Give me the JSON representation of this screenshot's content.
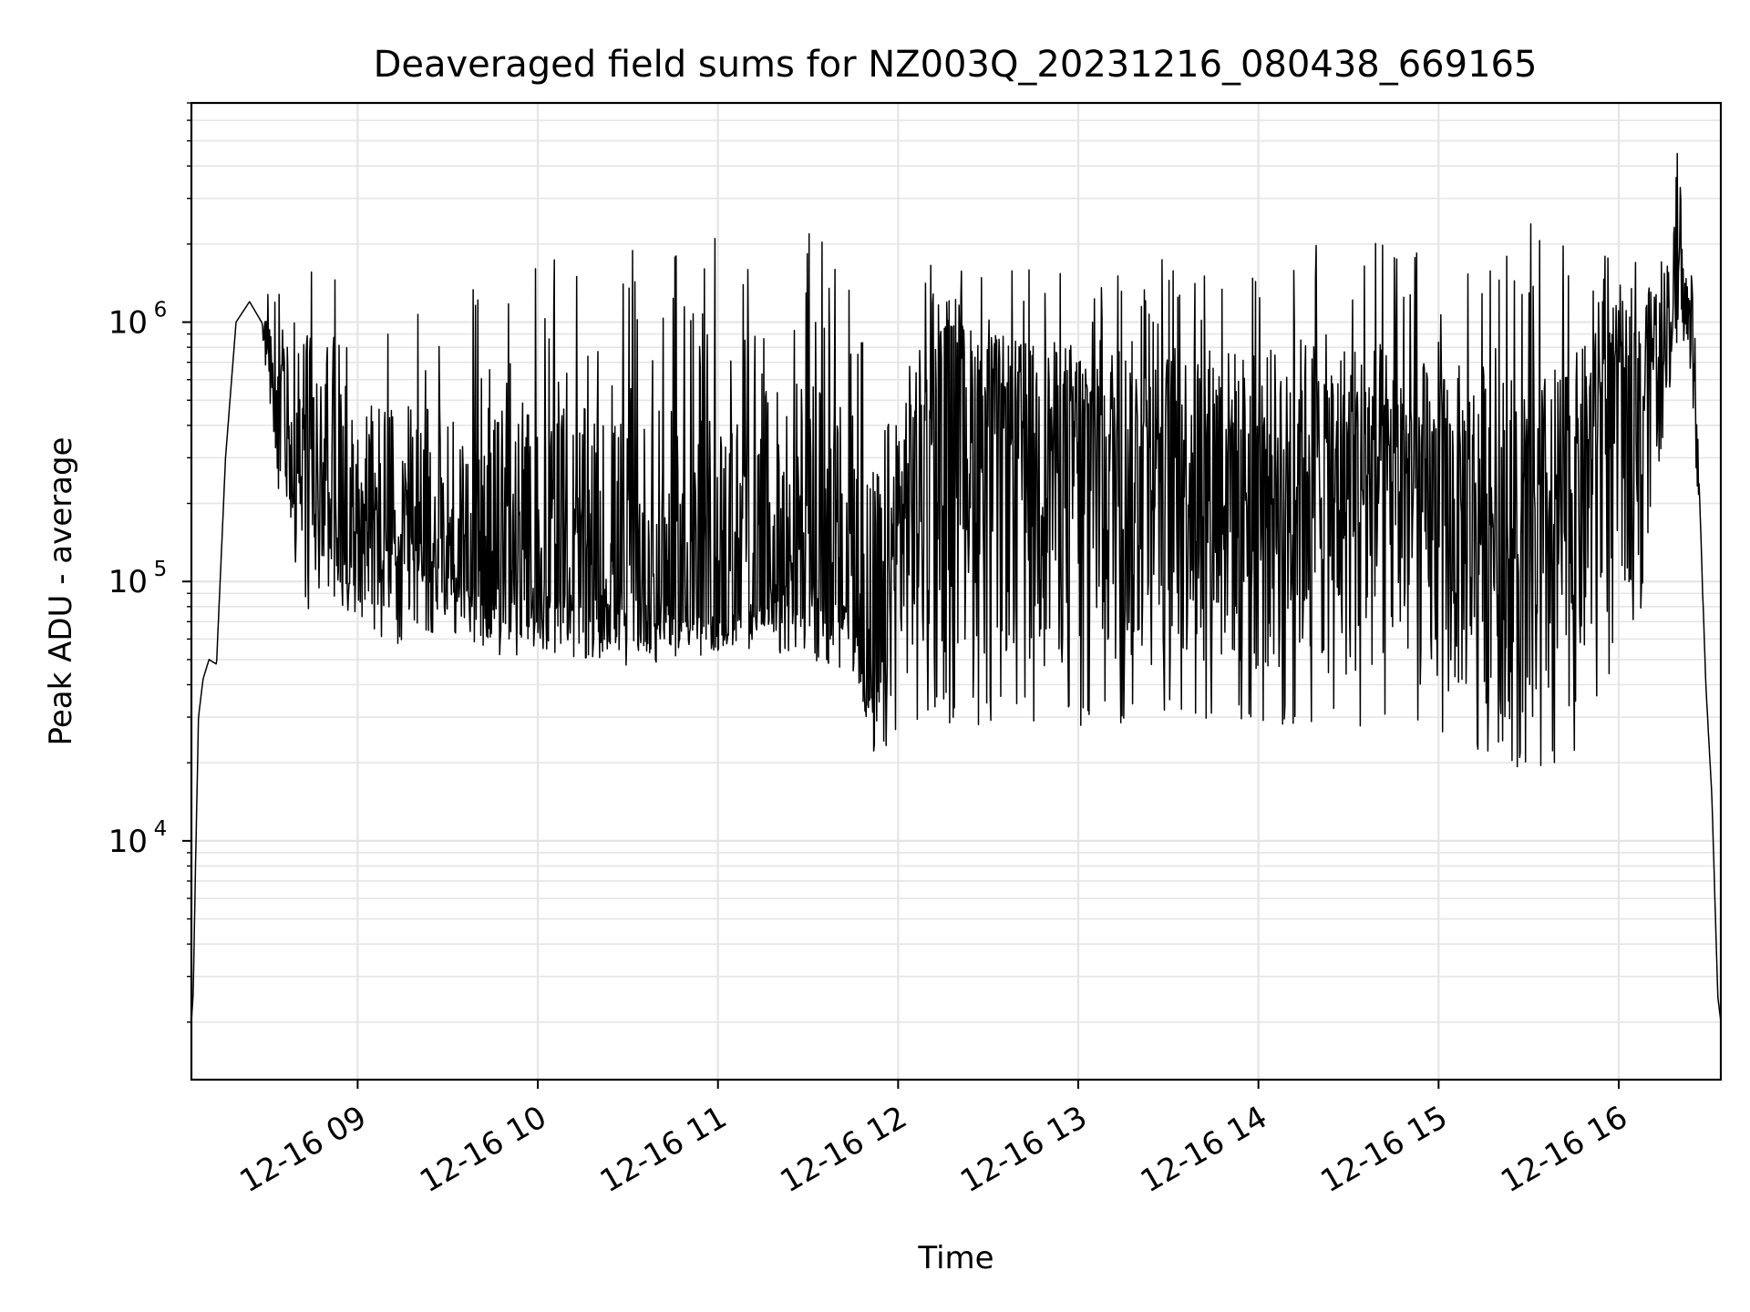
{
  "chart_data": {
    "type": "line",
    "title": "Deaveraged field sums for NZ003Q_20231216_080438_669165",
    "xlabel": "Time",
    "ylabel": "Peak ADU - average",
    "yscale": "log",
    "xlim": [
      "2023-12-16 08:04:38",
      "2023-12-16 16:34:00"
    ],
    "ylim": [
      1200,
      7000000
    ],
    "grid": true,
    "grid_minor": true,
    "line_color": "#000000",
    "grid_color": "#e5e5e5",
    "x_ticks": [
      {
        "value": "2023-12-16 09:00",
        "label": "12-16 09"
      },
      {
        "value": "2023-12-16 10:00",
        "label": "12-16 10"
      },
      {
        "value": "2023-12-16 11:00",
        "label": "12-16 11"
      },
      {
        "value": "2023-12-16 12:00",
        "label": "12-16 12"
      },
      {
        "value": "2023-12-16 13:00",
        "label": "12-16 13"
      },
      {
        "value": "2023-12-16 14:00",
        "label": "12-16 14"
      },
      {
        "value": "2023-12-16 15:00",
        "label": "12-16 15"
      },
      {
        "value": "2023-12-16 16:00",
        "label": "12-16 16"
      }
    ],
    "y_ticks": [
      {
        "value": 10000,
        "base": "10",
        "exp": "4"
      },
      {
        "value": 100000,
        "base": "10",
        "exp": "5"
      },
      {
        "value": 1000000,
        "base": "10",
        "exp": "6"
      }
    ],
    "series": [
      {
        "x": [
          "2023-12-16 08:04:38",
          "2023-12-16 08:05:15",
          "2023-12-16 08:06:00",
          "2023-12-16 08:07:00",
          "2023-12-16 08:08:30",
          "2023-12-16 08:10:30",
          "2023-12-16 08:13:00",
          "2023-12-16 08:16:00",
          "2023-12-16 08:19:30",
          "2023-12-16 08:24:00",
          "2023-12-16 08:28:00",
          "2023-12-16 08:31:00",
          "2023-12-16 08:33:00",
          "2023-12-16 08:35:00",
          "2023-12-16 08:37:00",
          "2023-12-16 08:39:30",
          "2023-12-16 08:43:00",
          "2023-12-16 08:47:00",
          "2023-12-16 08:51:00",
          "2023-12-16 08:55:00",
          "2023-12-16 09:00:00",
          "2023-12-16 09:10:00",
          "2023-12-16 09:20:00",
          "2023-12-16 09:30:00",
          "2023-12-16 09:40:00",
          "2023-12-16 09:50:00",
          "2023-12-16 10:00:00",
          "2023-12-16 10:15:00",
          "2023-12-16 10:30:00",
          "2023-12-16 10:45:00",
          "2023-12-16 11:00:00",
          "2023-12-16 11:15:00",
          "2023-12-16 11:30:00",
          "2023-12-16 11:45:00",
          "2023-12-16 11:52:00",
          "2023-12-16 12:00:00",
          "2023-12-16 12:15:00",
          "2023-12-16 12:30:00",
          "2023-12-16 12:45:00",
          "2023-12-16 13:00:00",
          "2023-12-16 13:15:00",
          "2023-12-16 13:30:00",
          "2023-12-16 13:45:00",
          "2023-12-16 14:00:00",
          "2023-12-16 14:15:00",
          "2023-12-16 14:30:00",
          "2023-12-16 14:45:00",
          "2023-12-16 15:00:00",
          "2023-12-16 15:15:00",
          "2023-12-16 15:30:00",
          "2023-12-16 15:45:00",
          "2023-12-16 16:00:00",
          "2023-12-16 16:05:00",
          "2023-12-16 16:10:00",
          "2023-12-16 16:15:00",
          "2023-12-16 16:19:00",
          "2023-12-16 16:21:00",
          "2023-12-16 16:23:00",
          "2023-12-16 16:25:00",
          "2023-12-16 16:27:00",
          "2023-12-16 16:29:00",
          "2023-12-16 16:31:00",
          "2023-12-16 16:33:00",
          "2023-12-16 16:34:00"
        ],
        "y": [
          2000,
          2600,
          8000,
          30000,
          42000,
          50000,
          48000,
          300000,
          1000000,
          1200000,
          1000000,
          600000,
          300000,
          700000,
          300000,
          200000,
          600000,
          150000,
          700000,
          120000,
          180000,
          150000,
          110000,
          130000,
          90000,
          100000,
          80000,
          90000,
          80000,
          85000,
          70000,
          90000,
          150000,
          70000,
          30000,
          150000,
          600000,
          500000,
          350000,
          400000,
          300000,
          300000,
          350000,
          280000,
          320000,
          250000,
          300000,
          150000,
          200000,
          100000,
          250000,
          600000,
          700000,
          900000,
          1100000,
          1200000,
          1300000,
          1100000,
          700000,
          200000,
          40000,
          15000,
          2500,
          2000
        ],
        "ymin": [
          2000,
          2600,
          8000,
          30000,
          42000,
          50000,
          48000,
          300000,
          1000000,
          1200000,
          1000000,
          300000,
          250000,
          120000,
          200000,
          90000,
          70000,
          80000,
          80000,
          80000,
          70000,
          55000,
          60000,
          65000,
          55000,
          50000,
          55000,
          50000,
          45000,
          50000,
          50000,
          55000,
          50000,
          45000,
          19000,
          28000,
          28000,
          28000,
          28000,
          26000,
          28000,
          30000,
          28000,
          26000,
          27000,
          26000,
          25000,
          25000,
          22000,
          18000,
          19000,
          55000,
          60000,
          100000,
          400000,
          800000,
          900000,
          500000,
          400000,
          150000,
          40000,
          15000,
          2500,
          2000
        ],
        "ymax": [
          2000,
          2600,
          8000,
          30000,
          42000,
          50000,
          48000,
          300000,
          1000000,
          1200000,
          1000000,
          1600000,
          1300000,
          1400000,
          1200000,
          1300000,
          1800000,
          1500000,
          2100000,
          1400000,
          1300000,
          1400000,
          1500000,
          1600000,
          1700000,
          1800000,
          2300000,
          1800000,
          1900000,
          1800000,
          2300000,
          2300000,
          2200000,
          2000000,
          1800000,
          1900000,
          1700000,
          1500000,
          1700000,
          1600000,
          2100000,
          1800000,
          1700000,
          1700000,
          2100000,
          2500000,
          1900000,
          2300000,
          2000000,
          2800000,
          1800000,
          2200000,
          1700000,
          1900000,
          2100000,
          5200000,
          3000000,
          2000000,
          1300000,
          200000,
          40000,
          15000,
          2500,
          2000
        ],
        "note_density_cycles_per_hour": 240
      }
    ]
  }
}
